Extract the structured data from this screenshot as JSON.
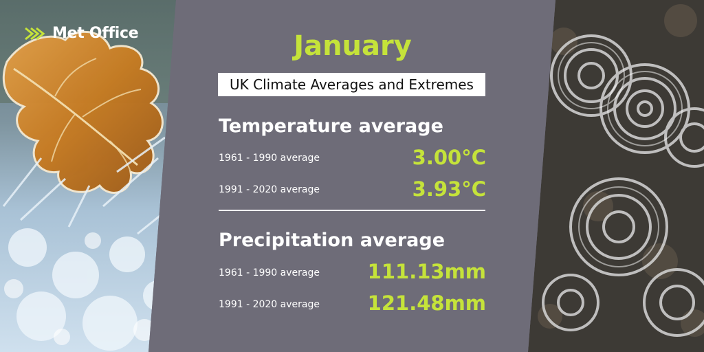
{
  "brand": {
    "logo_text": "Met Office",
    "icon": "met-office-chevrons-icon",
    "accent_color": "#c5e33a"
  },
  "title": {
    "month": "January",
    "subtitle": "UK Climate Averages and Extremes"
  },
  "temperature": {
    "heading": "Temperature average",
    "rows": [
      {
        "label": "1961 - 1990 average",
        "value": "3.00°C"
      },
      {
        "label": "1991 - 2020 average",
        "value": "3.93°C"
      }
    ]
  },
  "precipitation": {
    "heading": "Precipitation average",
    "rows": [
      {
        "label": "1961 - 1990 average",
        "value": "111.13mm"
      },
      {
        "label": "1991 - 2020 average",
        "value": "121.48mm"
      }
    ]
  },
  "colors": {
    "panel": "#6e6c78",
    "value_text": "#c5e33a",
    "heading_text": "#ffffff"
  }
}
